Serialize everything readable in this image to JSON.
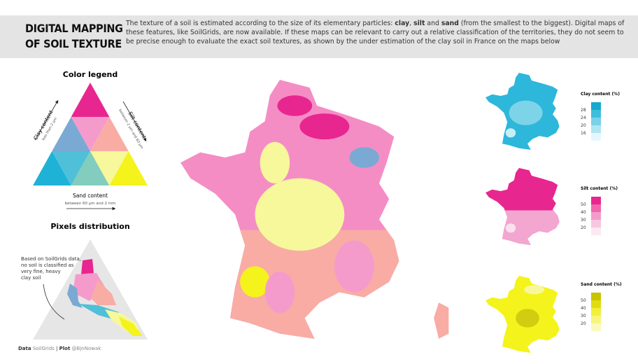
{
  "header": {
    "title_lines": [
      "DIGITAL MAPPING",
      "OF SOIL TEXTURE"
    ],
    "description": [
      "The texture of a soil is estimated according to the size of its elementary particles: ",
      "clay",
      ", ",
      "silt",
      " and ",
      "sand",
      " (from the smallest to the biggest). Digital maps of these features, like SoilGrids, are now available. If these maps can be relevant to carry out a relative classification of the territories, they do not seem to be precise enough to evaluate the exact soil textures, as shown by the under estimation of the clay soil in France on the maps below"
    ]
  },
  "color_legend": {
    "title": "Color legend",
    "clay": {
      "label": "Clay content",
      "detail": "less than 2 µm"
    },
    "silt": {
      "label": "Silt content",
      "detail": "between 2 µm and 60 µm"
    },
    "sand": {
      "label": "Sand content",
      "detail": "between 60 µm and 2 mm"
    }
  },
  "pixels_distribution": {
    "title": "Pixels distribution",
    "note": [
      "Based on SoilGrids data,",
      "no soil is classified as",
      "very fine, heavy",
      "clay soil"
    ]
  },
  "maps": [
    {
      "title": "Clay content (%)",
      "ticks": [
        28,
        24,
        20,
        16
      ]
    },
    {
      "title": "Silt content (%)",
      "ticks": [
        50,
        40,
        30,
        20
      ]
    },
    {
      "title": "Sand content (%)",
      "ticks": [
        50,
        40,
        30,
        20
      ]
    }
  ],
  "footer": {
    "data_label": "Data",
    "data_source": "SoilGrids",
    "separator": "|",
    "plot_label": "Plot",
    "author": "@BjnNowak"
  }
}
